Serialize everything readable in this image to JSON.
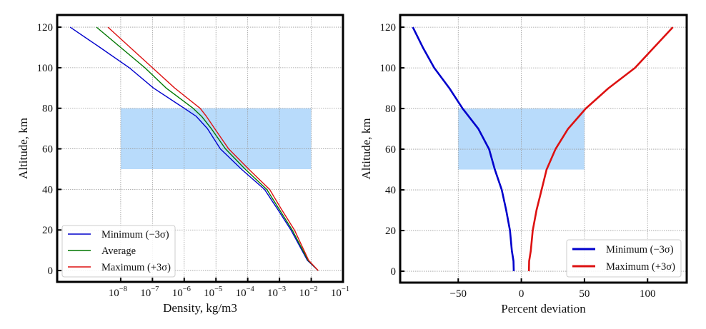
{
  "colors": {
    "minimum": "#0000cc",
    "average": "#007700",
    "maximum": "#dd1111",
    "shade": "#b8dbfb",
    "grid": "#9a9a9a",
    "frame": "#000000"
  },
  "chart_data": [
    {
      "type": "line",
      "title": "",
      "xlabel": "Density, kg/m3",
      "ylabel": "Altitude, km",
      "xscale": "log",
      "xlim_log10": [
        -10,
        -1
      ],
      "ylim": [
        -5.6,
        126
      ],
      "x_ticks_log10": [
        -8,
        -7,
        -6,
        -5,
        -4,
        -3,
        -2,
        -1
      ],
      "x_tick_labels": [
        {
          "base": "10",
          "exp": "−8"
        },
        {
          "base": "10",
          "exp": "−7"
        },
        {
          "base": "10",
          "exp": "−6"
        },
        {
          "base": "10",
          "exp": "−5"
        },
        {
          "base": "10",
          "exp": "−4"
        },
        {
          "base": "10",
          "exp": "−3"
        },
        {
          "base": "10",
          "exp": "−2"
        },
        {
          "base": "10",
          "exp": "−1"
        }
      ],
      "y_ticks": [
        0,
        20,
        40,
        60,
        80,
        100,
        120
      ],
      "y_tick_labels": [
        "0",
        "20",
        "40",
        "60",
        "80",
        "100",
        "120"
      ],
      "grid": true,
      "legend_position": "lower-left",
      "shaded_region": {
        "x_log10": [
          -8,
          -2
        ],
        "y": [
          50,
          80
        ]
      },
      "series": [
        {
          "name": "Minimum (−3σ)",
          "color_key": "minimum",
          "points_log10_density_vs_altitude": [
            [
              -1.78,
              0
            ],
            [
              -2.12,
              5
            ],
            [
              -2.64,
              20
            ],
            [
              -3.05,
              30
            ],
            [
              -3.47,
              40
            ],
            [
              -4.2,
              50
            ],
            [
              -4.86,
              60
            ],
            [
              -5.27,
              70
            ],
            [
              -5.62,
              76
            ],
            [
              -6.0,
              80
            ],
            [
              -6.97,
              90
            ],
            [
              -7.73,
              100
            ],
            [
              -8.65,
              110
            ],
            [
              -9.59,
              120
            ]
          ]
        },
        {
          "name": "Average",
          "color_key": "average",
          "points_log10_density_vs_altitude": [
            [
              -1.78,
              0
            ],
            [
              -2.1,
              5
            ],
            [
              -2.6,
              20
            ],
            [
              -3.0,
              30
            ],
            [
              -3.4,
              40
            ],
            [
              -4.08,
              50
            ],
            [
              -4.7,
              60
            ],
            [
              -5.15,
              70
            ],
            [
              -5.45,
              76
            ],
            [
              -5.72,
              80
            ],
            [
              -6.57,
              90
            ],
            [
              -7.24,
              100
            ],
            [
              -8.0,
              110
            ],
            [
              -8.76,
              120
            ]
          ]
        },
        {
          "name": "Maximum (+3σ)",
          "color_key": "maximum",
          "points_log10_density_vs_altitude": [
            [
              -1.78,
              0
            ],
            [
              -2.08,
              5
            ],
            [
              -2.53,
              20
            ],
            [
              -2.93,
              30
            ],
            [
              -3.31,
              40
            ],
            [
              -3.97,
              50
            ],
            [
              -4.6,
              60
            ],
            [
              -5.04,
              70
            ],
            [
              -5.3,
              76
            ],
            [
              -5.5,
              80
            ],
            [
              -6.3,
              90
            ],
            [
              -7.0,
              100
            ],
            [
              -7.7,
              110
            ],
            [
              -8.4,
              120
            ]
          ]
        }
      ]
    },
    {
      "type": "line",
      "title": "",
      "xlabel": "Percent deviation",
      "ylabel": "Altitude, km",
      "xlim": [
        -96,
        131
      ],
      "ylim": [
        -5.6,
        126
      ],
      "x_ticks": [
        -50,
        0,
        50,
        100
      ],
      "x_tick_labels": [
        "−50",
        "0",
        "50",
        "100"
      ],
      "y_ticks": [
        0,
        20,
        40,
        60,
        80,
        100,
        120
      ],
      "y_tick_labels": [
        "0",
        "20",
        "40",
        "60",
        "80",
        "100",
        "120"
      ],
      "grid": true,
      "legend_position": "lower-right",
      "shaded_region": {
        "x": [
          -50,
          50
        ],
        "y": [
          50,
          80
        ]
      },
      "series": [
        {
          "name": "Minimum (−3σ)",
          "color_key": "minimum",
          "points_percent_vs_altitude": [
            [
              -6,
              0
            ],
            [
              -6.2,
              5
            ],
            [
              -7.5,
              10
            ],
            [
              -9,
              20
            ],
            [
              -12,
              30
            ],
            [
              -15.5,
              40
            ],
            [
              -21,
              50
            ],
            [
              -25.5,
              60
            ],
            [
              -34,
              70
            ],
            [
              -46.5,
              80
            ],
            [
              -57,
              90
            ],
            [
              -69,
              100
            ],
            [
              -78,
              110
            ],
            [
              -86,
              120
            ]
          ]
        },
        {
          "name": "Maximum (+3σ)",
          "color_key": "maximum",
          "points_percent_vs_altitude": [
            [
              6,
              0
            ],
            [
              6.2,
              5
            ],
            [
              7.5,
              10
            ],
            [
              9,
              20
            ],
            [
              12,
              30
            ],
            [
              16,
              40
            ],
            [
              20,
              50
            ],
            [
              27,
              60
            ],
            [
              37,
              70
            ],
            [
              51,
              80
            ],
            [
              69,
              90
            ],
            [
              90,
              100
            ],
            [
              105,
              110
            ],
            [
              120,
              120
            ]
          ]
        }
      ]
    }
  ]
}
